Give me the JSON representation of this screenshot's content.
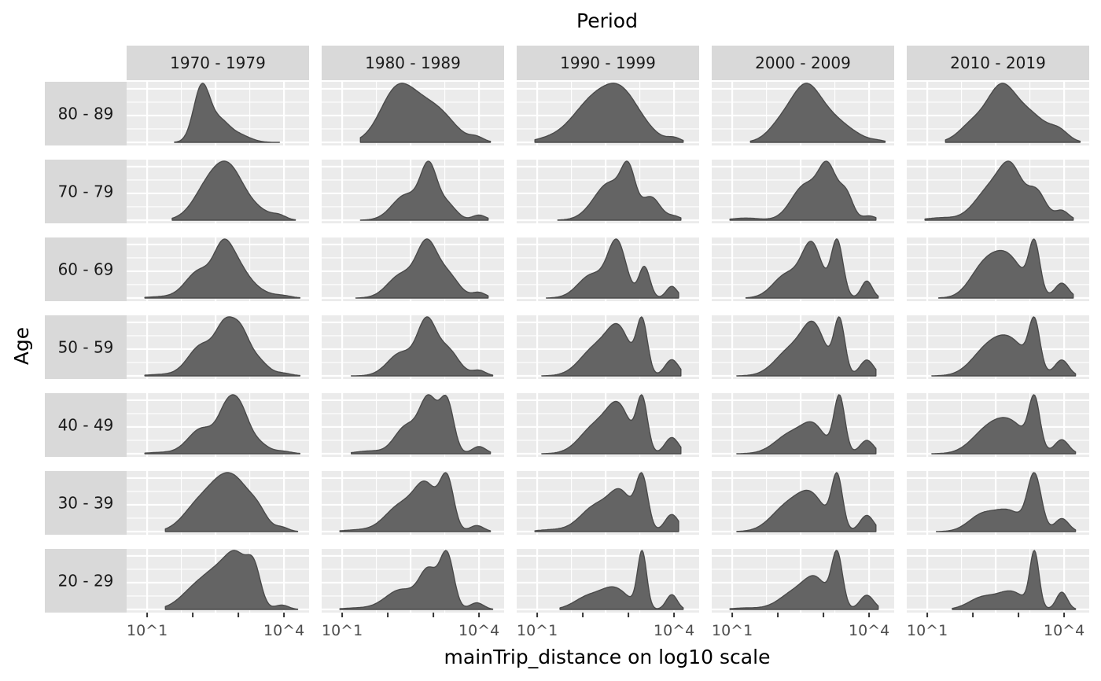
{
  "chart_data": {
    "type": "area",
    "subtype": "faceted density grid",
    "facet_col_title": "Period",
    "facet_row_title": "Age",
    "xlabel": "mainTrip_distance on log10 scale",
    "x_scale": "log10",
    "x_tick_labels": [
      "10^1",
      "10^4"
    ],
    "x_minor_ticks": [
      10,
      100,
      1000,
      10000
    ],
    "periods": [
      "1970 - 1979",
      "1980 - 1989",
      "1990 - 1999",
      "2000 - 2009",
      "2010 - 2019"
    ],
    "ages": [
      "80 - 89",
      "70 - 79",
      "60 - 69",
      "50 - 59",
      "40 - 49",
      "30 - 39",
      "20 - 29"
    ],
    "fill_color": "#646464",
    "panel_background": "#ebebeb",
    "strip_background": "#d9d9d9",
    "grid": true,
    "density_units": "log10(mainTrip_distance)",
    "panels": [
      [
        {
          "range": [
            1.6,
            3.9
          ],
          "components": [
            [
              2.2,
              0.18,
              0.9
            ],
            [
              2.6,
              0.2,
              0.3
            ],
            [
              3.0,
              0.25,
              0.12
            ]
          ]
        },
        {
          "range": [
            1.4,
            4.25
          ],
          "components": [
            [
              2.15,
              0.35,
              0.55
            ],
            [
              2.75,
              0.5,
              0.55
            ],
            [
              3.25,
              0.3,
              0.1
            ],
            [
              3.95,
              0.15,
              0.06
            ]
          ]
        },
        {
          "range": [
            0.95,
            4.2
          ],
          "components": [
            [
              1.2,
              0.3,
              0.03
            ],
            [
              2.3,
              0.5,
              0.65
            ],
            [
              2.9,
              0.35,
              0.45
            ],
            [
              3.4,
              0.3,
              0.1
            ],
            [
              4.0,
              0.15,
              0.06
            ]
          ]
        },
        {
          "range": [
            1.4,
            4.35
          ],
          "components": [
            [
              2.1,
              0.3,
              0.3
            ],
            [
              2.6,
              0.3,
              0.7
            ],
            [
              3.1,
              0.4,
              0.4
            ],
            [
              3.7,
              0.3,
              0.05
            ],
            [
              4.2,
              0.15,
              0.02
            ]
          ]
        },
        {
          "range": [
            1.4,
            4.35
          ],
          "components": [
            [
              2.0,
              0.3,
              0.25
            ],
            [
              2.6,
              0.3,
              0.65
            ],
            [
              3.2,
              0.4,
              0.4
            ],
            [
              3.9,
              0.2,
              0.12
            ]
          ]
        }
      ],
      [
        {
          "range": [
            1.55,
            4.25
          ],
          "components": [
            [
              2.4,
              0.35,
              0.6
            ],
            [
              2.85,
              0.3,
              0.6
            ],
            [
              3.4,
              0.3,
              0.15
            ],
            [
              3.9,
              0.15,
              0.06
            ]
          ]
        },
        {
          "range": [
            1.4,
            4.2
          ],
          "components": [
            [
              2.4,
              0.3,
              0.4
            ],
            [
              2.9,
              0.18,
              0.8
            ],
            [
              3.3,
              0.2,
              0.25
            ],
            [
              4.0,
              0.15,
              0.08
            ]
          ]
        },
        {
          "range": [
            1.45,
            4.15
          ],
          "components": [
            [
              2.6,
              0.35,
              0.6
            ],
            [
              3.0,
              0.15,
              0.6
            ],
            [
              3.5,
              0.2,
              0.35
            ],
            [
              4.0,
              0.15,
              0.06
            ]
          ]
        },
        {
          "range": [
            0.95,
            4.15
          ],
          "components": [
            [
              1.3,
              0.3,
              0.03
            ],
            [
              2.6,
              0.3,
              0.5
            ],
            [
              3.1,
              0.2,
              0.7
            ],
            [
              3.5,
              0.15,
              0.35
            ],
            [
              4.0,
              0.15,
              0.06
            ]
          ]
        },
        {
          "range": [
            0.95,
            4.2
          ],
          "components": [
            [
              1.3,
              0.3,
              0.03
            ],
            [
              2.4,
              0.35,
              0.4
            ],
            [
              2.85,
              0.25,
              0.55
            ],
            [
              3.4,
              0.2,
              0.35
            ],
            [
              3.95,
              0.15,
              0.12
            ]
          ]
        }
      ],
      [
        {
          "range": [
            0.95,
            4.35
          ],
          "components": [
            [
              1.3,
              0.3,
              0.02
            ],
            [
              2.15,
              0.3,
              0.45
            ],
            [
              2.65,
              0.2,
              0.6
            ],
            [
              2.95,
              0.25,
              0.5
            ],
            [
              3.4,
              0.25,
              0.12
            ],
            [
              3.95,
              0.2,
              0.04
            ]
          ]
        },
        {
          "range": [
            1.3,
            4.2
          ],
          "components": [
            [
              2.3,
              0.3,
              0.35
            ],
            [
              2.85,
              0.22,
              0.75
            ],
            [
              3.3,
              0.25,
              0.35
            ],
            [
              4.0,
              0.15,
              0.08
            ]
          ]
        },
        {
          "range": [
            1.2,
            4.1
          ],
          "components": [
            [
              2.2,
              0.3,
              0.3
            ],
            [
              2.75,
              0.2,
              0.7
            ],
            [
              3.35,
              0.12,
              0.4
            ],
            [
              3.95,
              0.12,
              0.15
            ]
          ]
        },
        {
          "range": [
            1.3,
            4.2
          ],
          "components": [
            [
              2.2,
              0.3,
              0.25
            ],
            [
              2.75,
              0.22,
              0.55
            ],
            [
              3.3,
              0.13,
              0.6
            ],
            [
              3.95,
              0.12,
              0.18
            ]
          ]
        },
        {
          "range": [
            1.25,
            4.2
          ],
          "components": [
            [
              2.2,
              0.3,
              0.3
            ],
            [
              2.75,
              0.35,
              0.5
            ],
            [
              3.35,
              0.12,
              0.6
            ],
            [
              3.95,
              0.15,
              0.18
            ]
          ]
        }
      ],
      [
        {
          "range": [
            0.95,
            4.35
          ],
          "components": [
            [
              1.3,
              0.3,
              0.02
            ],
            [
              2.2,
              0.3,
              0.45
            ],
            [
              2.7,
              0.2,
              0.6
            ],
            [
              3.05,
              0.2,
              0.6
            ],
            [
              3.45,
              0.2,
              0.2
            ],
            [
              3.95,
              0.2,
              0.04
            ]
          ]
        },
        {
          "range": [
            1.2,
            4.3
          ],
          "components": [
            [
              2.3,
              0.3,
              0.35
            ],
            [
              2.85,
              0.2,
              0.75
            ],
            [
              3.3,
              0.25,
              0.4
            ],
            [
              4.0,
              0.15,
              0.08
            ]
          ]
        },
        {
          "range": [
            1.1,
            4.15
          ],
          "components": [
            [
              2.3,
              0.35,
              0.35
            ],
            [
              2.8,
              0.25,
              0.5
            ],
            [
              3.3,
              0.12,
              0.65
            ],
            [
              3.95,
              0.15,
              0.2
            ]
          ]
        },
        {
          "range": [
            1.1,
            4.15
          ],
          "components": [
            [
              2.3,
              0.35,
              0.3
            ],
            [
              2.8,
              0.25,
              0.5
            ],
            [
              3.35,
              0.12,
              0.62
            ],
            [
              3.95,
              0.15,
              0.18
            ]
          ]
        },
        {
          "range": [
            1.1,
            4.25
          ],
          "components": [
            [
              2.3,
              0.35,
              0.3
            ],
            [
              2.85,
              0.35,
              0.4
            ],
            [
              3.35,
              0.12,
              0.6
            ],
            [
              3.95,
              0.15,
              0.2
            ]
          ]
        }
      ],
      [
        {
          "range": [
            0.95,
            4.35
          ],
          "components": [
            [
              1.3,
              0.3,
              0.02
            ],
            [
              2.2,
              0.3,
              0.4
            ],
            [
              2.75,
              0.2,
              0.6
            ],
            [
              3.05,
              0.2,
              0.6
            ],
            [
              3.45,
              0.2,
              0.15
            ],
            [
              3.95,
              0.2,
              0.04
            ]
          ]
        },
        {
          "range": [
            1.2,
            4.25
          ],
          "components": [
            [
              1.6,
              0.3,
              0.03
            ],
            [
              2.4,
              0.25,
              0.3
            ],
            [
              2.9,
              0.2,
              0.6
            ],
            [
              3.3,
              0.15,
              0.55
            ],
            [
              4.0,
              0.15,
              0.08
            ]
          ]
        },
        {
          "range": [
            1.1,
            4.15
          ],
          "components": [
            [
              2.3,
              0.35,
              0.35
            ],
            [
              2.8,
              0.25,
              0.5
            ],
            [
              3.3,
              0.12,
              0.65
            ],
            [
              3.95,
              0.15,
              0.2
            ]
          ]
        },
        {
          "range": [
            1.1,
            4.15
          ],
          "components": [
            [
              2.3,
              0.35,
              0.3
            ],
            [
              2.8,
              0.25,
              0.35
            ],
            [
              3.35,
              0.12,
              0.85
            ],
            [
              3.95,
              0.15,
              0.2
            ]
          ]
        },
        {
          "range": [
            1.1,
            4.25
          ],
          "components": [
            [
              2.3,
              0.35,
              0.3
            ],
            [
              2.85,
              0.35,
              0.4
            ],
            [
              3.35,
              0.12,
              0.7
            ],
            [
              3.95,
              0.15,
              0.2
            ]
          ]
        }
      ],
      [
        {
          "range": [
            1.4,
            4.3
          ],
          "components": [
            [
              2.15,
              0.35,
              0.4
            ],
            [
              2.65,
              0.3,
              0.5
            ],
            [
              3.05,
              0.3,
              0.5
            ],
            [
              3.45,
              0.2,
              0.2
            ],
            [
              3.95,
              0.15,
              0.06
            ]
          ]
        },
        {
          "range": [
            0.95,
            4.25
          ],
          "components": [
            [
              1.3,
              0.3,
              0.02
            ],
            [
              2.3,
              0.35,
              0.35
            ],
            [
              2.85,
              0.25,
              0.55
            ],
            [
              3.3,
              0.15,
              0.65
            ],
            [
              3.95,
              0.15,
              0.08
            ]
          ]
        },
        {
          "range": [
            0.95,
            4.1
          ],
          "components": [
            [
              1.3,
              0.3,
              0.02
            ],
            [
              2.3,
              0.35,
              0.3
            ],
            [
              2.85,
              0.25,
              0.4
            ],
            [
              3.3,
              0.13,
              0.6
            ],
            [
              3.95,
              0.15,
              0.2
            ]
          ]
        },
        {
          "range": [
            1.1,
            4.15
          ],
          "components": [
            [
              2.2,
              0.35,
              0.3
            ],
            [
              2.75,
              0.3,
              0.4
            ],
            [
              3.3,
              0.12,
              0.65
            ],
            [
              3.95,
              0.15,
              0.2
            ]
          ]
        },
        {
          "range": [
            1.2,
            4.25
          ],
          "components": [
            [
              2.2,
              0.3,
              0.25
            ],
            [
              2.8,
              0.3,
              0.3
            ],
            [
              3.35,
              0.15,
              0.85
            ],
            [
              3.95,
              0.15,
              0.2
            ]
          ]
        }
      ],
      [
        {
          "range": [
            1.4,
            4.3
          ],
          "components": [
            [
              2.1,
              0.35,
              0.3
            ],
            [
              2.6,
              0.3,
              0.4
            ],
            [
              3.0,
              0.25,
              0.6
            ],
            [
              3.35,
              0.15,
              0.45
            ],
            [
              3.95,
              0.15,
              0.06
            ]
          ]
        },
        {
          "range": [
            0.95,
            4.3
          ],
          "components": [
            [
              1.3,
              0.3,
              0.02
            ],
            [
              2.3,
              0.35,
              0.3
            ],
            [
              2.9,
              0.2,
              0.55
            ],
            [
              3.3,
              0.15,
              0.8
            ],
            [
              3.95,
              0.15,
              0.1
            ]
          ]
        },
        {
          "range": [
            1.5,
            4.2
          ],
          "components": [
            [
              2.1,
              0.3,
              0.2
            ],
            [
              2.7,
              0.3,
              0.35
            ],
            [
              3.3,
              0.1,
              0.95
            ],
            [
              3.95,
              0.12,
              0.25
            ]
          ]
        },
        {
          "range": [
            0.95,
            4.2
          ],
          "components": [
            [
              1.3,
              0.3,
              0.02
            ],
            [
              2.4,
              0.35,
              0.25
            ],
            [
              2.85,
              0.25,
              0.35
            ],
            [
              3.3,
              0.12,
              0.75
            ],
            [
              3.95,
              0.15,
              0.2
            ]
          ]
        },
        {
          "range": [
            1.55,
            4.25
          ],
          "components": [
            [
              2.2,
              0.3,
              0.2
            ],
            [
              2.85,
              0.3,
              0.3
            ],
            [
              3.35,
              0.1,
              0.95
            ],
            [
              3.95,
              0.12,
              0.3
            ]
          ]
        }
      ]
    ]
  }
}
